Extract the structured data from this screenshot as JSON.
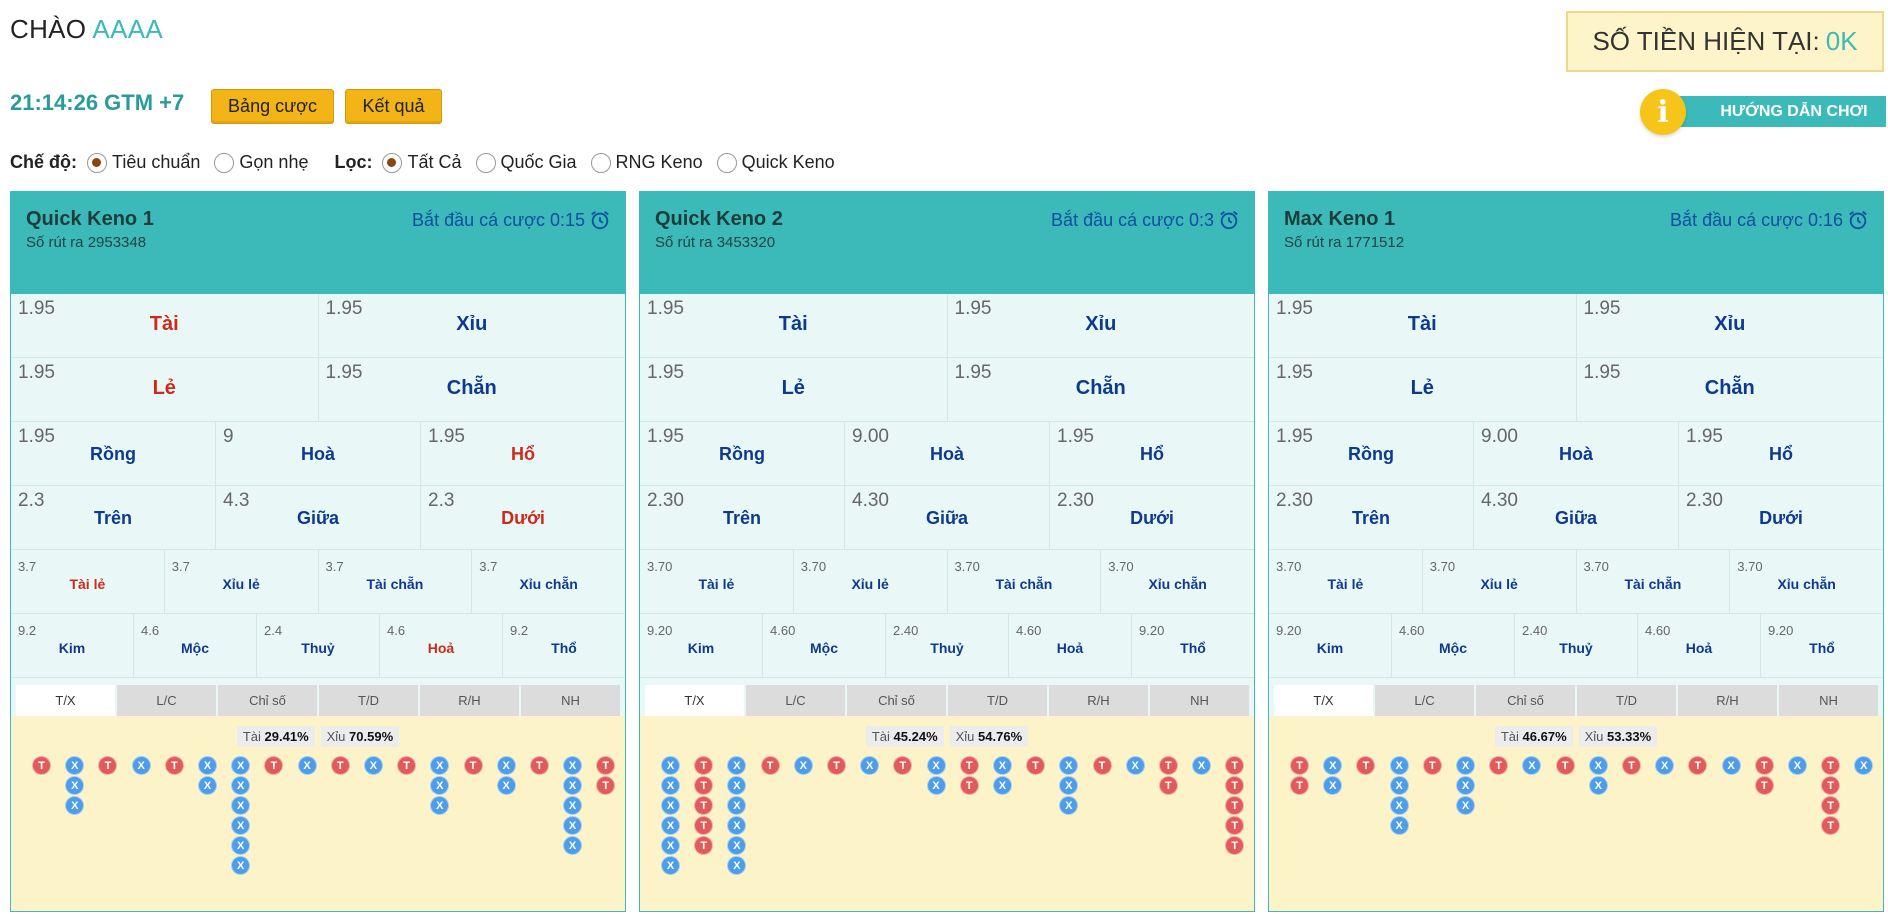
{
  "header": {
    "greeting": "CHÀO",
    "username": "AAAA",
    "balance_label": "SỐ TIỀN HIỆN TẠI:",
    "balance_value": "0K",
    "clock": "21:14:26 GTM +7",
    "bet_table_label": "Bảng cược",
    "results_label": "Kết quả",
    "guide_label": "HƯỚNG DẪN CHƠI"
  },
  "options": {
    "mode_label": "Chế độ:",
    "modes": [
      "Tiêu chuẩn",
      "Gọn nhẹ"
    ],
    "mode_selected": "Tiêu chuẩn",
    "filter_label": "Lọc:",
    "filters": [
      "Tất Cả",
      "Quốc Gia",
      "RNG Keno",
      "Quick Keno"
    ],
    "filter_selected": "Tất Cả"
  },
  "colors": {
    "accent": "#3cb9b9",
    "button": "#f2b417",
    "tai": "#e15b5b",
    "xiu": "#4d9de8"
  },
  "panels": [
    {
      "name": "Quick Keno 1",
      "draw": "Số rút ra 2953348",
      "countdown": "Bắt đầu cá cược 0:15",
      "rows": [
        [
          {
            "o": "1.95",
            "n": "Tài",
            "red": true
          },
          {
            "o": "1.95",
            "n": "Xỉu"
          }
        ],
        [
          {
            "o": "1.95",
            "n": "Lẻ",
            "red": true
          },
          {
            "o": "1.95",
            "n": "Chẵn"
          }
        ],
        [
          {
            "o": "1.95",
            "n": "Rồng"
          },
          {
            "o": "9",
            "n": "Hoà"
          },
          {
            "o": "1.95",
            "n": "Hổ",
            "red": true
          }
        ],
        [
          {
            "o": "2.3",
            "n": "Trên"
          },
          {
            "o": "4.3",
            "n": "Giữa"
          },
          {
            "o": "2.3",
            "n": "Dưới",
            "red": true
          }
        ],
        [
          {
            "o": "3.7",
            "n": "Tài lẻ",
            "red": true
          },
          {
            "o": "3.7",
            "n": "Xỉu lẻ"
          },
          {
            "o": "3.7",
            "n": "Tài chẵn"
          },
          {
            "o": "3.7",
            "n": "Xỉu chẵn"
          }
        ],
        [
          {
            "o": "9.2",
            "n": "Kim"
          },
          {
            "o": "4.6",
            "n": "Mộc"
          },
          {
            "o": "2.4",
            "n": "Thuỷ"
          },
          {
            "o": "4.6",
            "n": "Hoả",
            "red": true
          },
          {
            "o": "9.2",
            "n": "Thổ"
          }
        ]
      ],
      "tabs": [
        "T/X",
        "L/C",
        "Chỉ số",
        "T/D",
        "R/H",
        "NH"
      ],
      "active_tab": "T/X",
      "tai_label": "Tài",
      "tai_pct": "29.41%",
      "xiu_label": "Xỉu",
      "xiu_pct": "70.59%",
      "road": [
        "T",
        "XXX",
        "T",
        "X",
        "T",
        "XX",
        "XXXXXX",
        "T",
        "X",
        "T",
        "X",
        "T",
        "XXX",
        "T",
        "XX",
        "T",
        "XXXXX",
        "TT"
      ]
    },
    {
      "name": "Quick Keno 2",
      "draw": "Số rút ra 3453320",
      "countdown": "Bắt đầu cá cược 0:3",
      "rows": [
        [
          {
            "o": "1.95",
            "n": "Tài"
          },
          {
            "o": "1.95",
            "n": "Xỉu"
          }
        ],
        [
          {
            "o": "1.95",
            "n": "Lẻ"
          },
          {
            "o": "1.95",
            "n": "Chẵn"
          }
        ],
        [
          {
            "o": "1.95",
            "n": "Rồng"
          },
          {
            "o": "9.00",
            "n": "Hoà"
          },
          {
            "o": "1.95",
            "n": "Hổ"
          }
        ],
        [
          {
            "o": "2.30",
            "n": "Trên"
          },
          {
            "o": "4.30",
            "n": "Giữa"
          },
          {
            "o": "2.30",
            "n": "Dưới"
          }
        ],
        [
          {
            "o": "3.70",
            "n": "Tài lẻ"
          },
          {
            "o": "3.70",
            "n": "Xỉu lẻ"
          },
          {
            "o": "3.70",
            "n": "Tài chẵn"
          },
          {
            "o": "3.70",
            "n": "Xỉu chẵn"
          }
        ],
        [
          {
            "o": "9.20",
            "n": "Kim"
          },
          {
            "o": "4.60",
            "n": "Mộc"
          },
          {
            "o": "2.40",
            "n": "Thuỷ"
          },
          {
            "o": "4.60",
            "n": "Hoả"
          },
          {
            "o": "9.20",
            "n": "Thổ"
          }
        ]
      ],
      "tabs": [
        "T/X",
        "L/C",
        "Chỉ số",
        "T/D",
        "R/H",
        "NH"
      ],
      "active_tab": "T/X",
      "tai_label": "Tài",
      "tai_pct": "45.24%",
      "xiu_label": "Xỉu",
      "xiu_pct": "54.76%",
      "road": [
        "XXXXXX",
        "TTTTT",
        "XXXXXX",
        "T",
        "X",
        "T",
        "X",
        "T",
        "XX",
        "TT",
        "XX",
        "T",
        "XXX",
        "T",
        "X",
        "TT",
        "X",
        "TTTTT"
      ]
    },
    {
      "name": "Max Keno 1",
      "draw": "Số rút ra 1771512",
      "countdown": "Bắt đầu cá cược 0:16",
      "rows": [
        [
          {
            "o": "1.95",
            "n": "Tài"
          },
          {
            "o": "1.95",
            "n": "Xỉu"
          }
        ],
        [
          {
            "o": "1.95",
            "n": "Lẻ"
          },
          {
            "o": "1.95",
            "n": "Chẵn"
          }
        ],
        [
          {
            "o": "1.95",
            "n": "Rồng"
          },
          {
            "o": "9.00",
            "n": "Hoà"
          },
          {
            "o": "1.95",
            "n": "Hổ"
          }
        ],
        [
          {
            "o": "2.30",
            "n": "Trên"
          },
          {
            "o": "4.30",
            "n": "Giữa"
          },
          {
            "o": "2.30",
            "n": "Dưới"
          }
        ],
        [
          {
            "o": "3.70",
            "n": "Tài lẻ"
          },
          {
            "o": "3.70",
            "n": "Xỉu lẻ"
          },
          {
            "o": "3.70",
            "n": "Tài chẵn"
          },
          {
            "o": "3.70",
            "n": "Xỉu chẵn"
          }
        ],
        [
          {
            "o": "9.20",
            "n": "Kim"
          },
          {
            "o": "4.60",
            "n": "Mộc"
          },
          {
            "o": "2.40",
            "n": "Thuỷ"
          },
          {
            "o": "4.60",
            "n": "Hoả"
          },
          {
            "o": "9.20",
            "n": "Thổ"
          }
        ]
      ],
      "tabs": [
        "T/X",
        "L/C",
        "Chỉ số",
        "T/D",
        "R/H",
        "NH"
      ],
      "active_tab": "T/X",
      "tai_label": "Tài",
      "tai_pct": "46.67%",
      "xiu_label": "Xỉu",
      "xiu_pct": "53.33%",
      "road": [
        "TT",
        "XX",
        "T",
        "XXXX",
        "T",
        "XXX",
        "T",
        "X",
        "T",
        "XX",
        "T",
        "X",
        "T",
        "X",
        "TT",
        "X",
        "TTTT",
        "X"
      ]
    }
  ]
}
